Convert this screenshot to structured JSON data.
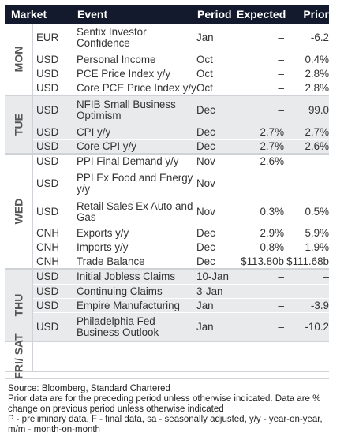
{
  "header": {
    "market": "Market",
    "event": "Event",
    "period": "Period",
    "expected": "Expected",
    "prior": "Prior"
  },
  "groups": [
    {
      "day": "MON",
      "shaded": false,
      "rows": [
        {
          "market": "EUR",
          "event": "Sentix Investor Confidence",
          "period": "Jan",
          "expected": "–",
          "prior": "-6.2",
          "h": 36
        },
        {
          "market": "USD",
          "event": "Personal Income",
          "period": "Oct",
          "expected": "–",
          "prior": "0.4%",
          "h": 18
        },
        {
          "market": "USD",
          "event": "PCE Price Index y/y",
          "period": "Oct",
          "expected": "–",
          "prior": "2.8%",
          "h": 18
        },
        {
          "market": "USD",
          "event": "Core PCE Price Index y/y",
          "period": "Oct",
          "expected": "–",
          "prior": "2.8%",
          "h": 18
        }
      ]
    },
    {
      "day": "TUE",
      "shaded": true,
      "rows": [
        {
          "market": "USD",
          "event": "NFIB Small Business Optimism",
          "period": "Dec",
          "expected": "–",
          "prior": "99.0",
          "h": 36
        },
        {
          "market": "USD",
          "event": "CPI y/y",
          "period": "Dec",
          "expected": "2.7%",
          "prior": "2.7%",
          "h": 18
        },
        {
          "market": "USD",
          "event": "Core CPI y/y",
          "period": "Dec",
          "expected": "2.7%",
          "prior": "2.6%",
          "h": 18
        }
      ]
    },
    {
      "day": "WED",
      "shaded": false,
      "rows": [
        {
          "market": "USD",
          "event": "PPI Final Demand y/y",
          "period": "Nov",
          "expected": "2.6%",
          "prior": "–",
          "h": 18
        },
        {
          "market": "USD",
          "event": "PPI Ex Food and Energy y/y",
          "period": "Nov",
          "expected": "–",
          "prior": "–",
          "h": 36
        },
        {
          "market": "USD",
          "event": "Retail Sales Ex Auto and Gas",
          "period": "Nov",
          "expected": "0.3%",
          "prior": "0.5%",
          "h": 36
        },
        {
          "market": "CNH",
          "event": "Exports y/y",
          "period": "Dec",
          "expected": "2.9%",
          "prior": "5.9%",
          "h": 18
        },
        {
          "market": "CNH",
          "event": "Imports y/y",
          "period": "Dec",
          "expected": "0.8%",
          "prior": "1.9%",
          "h": 18
        },
        {
          "market": "CNH",
          "event": "Trade Balance",
          "period": "Dec",
          "expected": "$113.80b",
          "prior": "$111.68b",
          "h": 18
        }
      ]
    },
    {
      "day": "THU",
      "shaded": true,
      "rows": [
        {
          "market": "USD",
          "event": "Initial Jobless Claims",
          "period": "10-Jan",
          "expected": "–",
          "prior": "–",
          "h": 18
        },
        {
          "market": "USD",
          "event": "Continuing Claims",
          "period": "3-Jan",
          "expected": "–",
          "prior": "–",
          "h": 18
        },
        {
          "market": "USD",
          "event": "Empire Manufacturing",
          "period": "Jan",
          "expected": "–",
          "prior": "-3.9",
          "h": 18
        },
        {
          "market": "USD",
          "event": "Philadelphia Fed Business Outlook",
          "period": "Jan",
          "expected": "–",
          "prior": "-10.2",
          "h": 36
        }
      ]
    },
    {
      "day": "FRI/ SAT",
      "shaded": false,
      "rows": [
        {
          "market": "",
          "event": "",
          "period": "",
          "expected": "",
          "prior": "",
          "h": 36
        }
      ]
    }
  ],
  "notes": [
    "Source: Bloomberg, Standard Chartered",
    "Prior data are for the preceding period unless otherwise indicated. Data are % change on previous period unless otherwise indicated",
    "P - preliminary data, F - final data, sa - seasonally adjusted, y/y - year-on-year, m/m - month-on-month"
  ]
}
